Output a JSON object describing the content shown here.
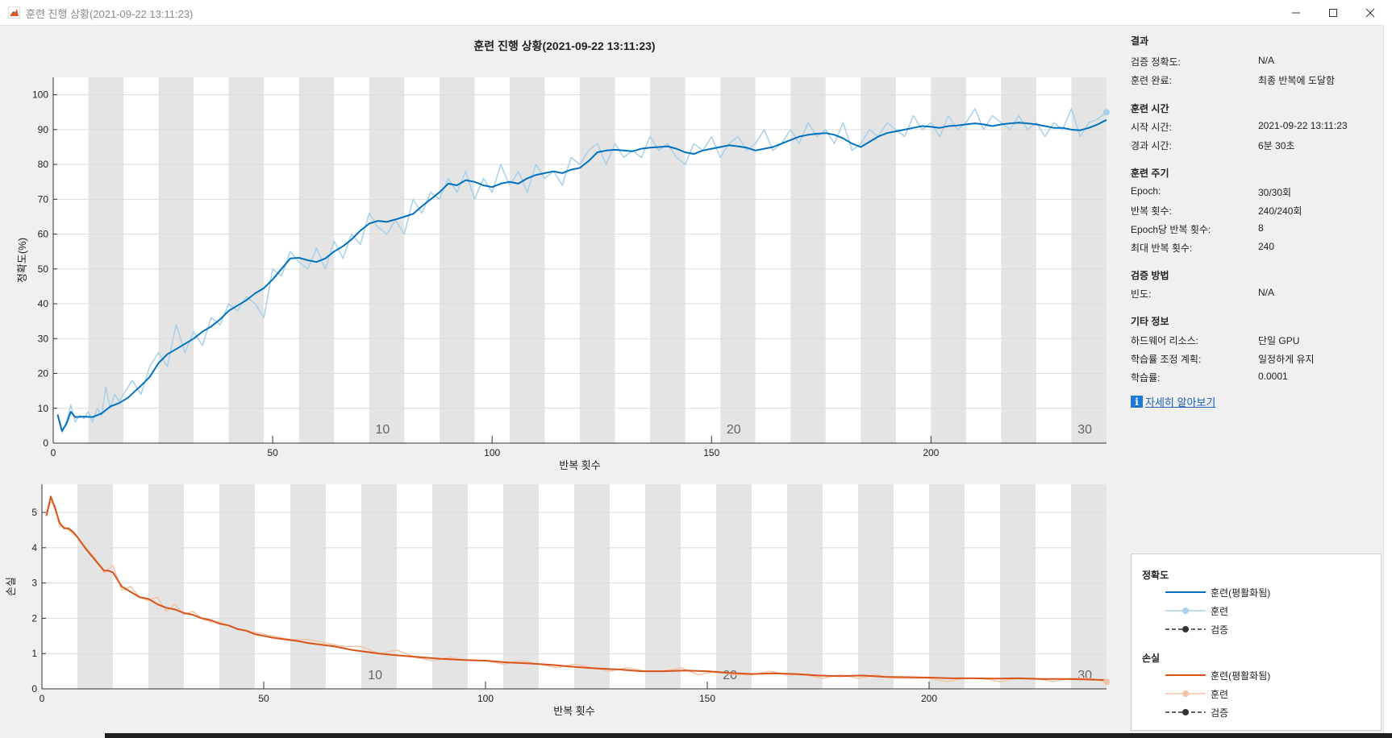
{
  "window": {
    "title": "훈련 진행 상황(2021-09-22 13:11:23)",
    "minimize_glyph": "—",
    "maximize_glyph": "☐",
    "close_glyph": "✕"
  },
  "chart_title": "훈련 진행 상황(2021-09-22 13:11:23)",
  "info": {
    "results_title": "결과",
    "results": [
      {
        "label": "검증 정확도:",
        "value": "N/A"
      },
      {
        "label": "훈련 완료:",
        "value": "최종 반복에 도달함"
      }
    ],
    "time_title": "훈련 시간",
    "time": [
      {
        "label": "시작 시간:",
        "value": "2021-09-22 13:11:23"
      },
      {
        "label": "경과 시간:",
        "value": "6분 30초"
      }
    ],
    "cycle_title": "훈련 주기",
    "cycle": [
      {
        "label": "Epoch:",
        "value": "30/30회"
      },
      {
        "label": "반복 횟수:",
        "value": "240/240회"
      },
      {
        "label": "Epoch당 반복 횟수:",
        "value": "8"
      },
      {
        "label": "최대 반복 횟수:",
        "value": "240"
      }
    ],
    "validation_title": "검증 방법",
    "validation": [
      {
        "label": "빈도:",
        "value": "N/A"
      }
    ],
    "other_title": "기타 정보",
    "other": [
      {
        "label": "하드웨어 리소스:",
        "value": "단일 GPU"
      },
      {
        "label": "학습률 조정 계획:",
        "value": "일정하게 유지"
      },
      {
        "label": "학습률:",
        "value": "0.0001"
      }
    ],
    "learn_more": "자세히 알아보기",
    "info_glyph": "i"
  },
  "legend": {
    "accuracy_title": "정확도",
    "loss_title": "손실",
    "smoothed": "훈련(평활화됨)",
    "training": "훈련",
    "validation": "검증"
  },
  "colors": {
    "acc_smooth": "#0072bd",
    "acc_raw": "#a8d0ea",
    "loss_smooth": "#d95319",
    "loss_raw": "#f4c3a8",
    "epoch_band": "#e4e4e4",
    "grid": "#dcdcdc",
    "validation": "#333333"
  },
  "chart_data": [
    {
      "type": "line",
      "ylabel": "정확도(%)",
      "xlabel": "반복 횟수",
      "xlim": [
        0,
        240
      ],
      "ylim": [
        0,
        105
      ],
      "xticks": [
        0,
        50,
        100,
        150,
        200
      ],
      "yticks": [
        0,
        10,
        20,
        30,
        40,
        50,
        60,
        70,
        80,
        90,
        100
      ],
      "epoch_labels": [
        {
          "x": 80,
          "label": "10"
        },
        {
          "x": 160,
          "label": "20"
        },
        {
          "x": 240,
          "label": "30"
        }
      ],
      "grid": true,
      "series": [
        {
          "name": "훈련(평활화됨)",
          "x": [
            1,
            2,
            3,
            4,
            5,
            7,
            9,
            11,
            13,
            15,
            17,
            20,
            22,
            24,
            26,
            28,
            30,
            32,
            34,
            36,
            38,
            40,
            42,
            44,
            46,
            48,
            50,
            52,
            54,
            56,
            58,
            60,
            62,
            64,
            66,
            68,
            70,
            72,
            74,
            76,
            78,
            80,
            82,
            84,
            86,
            88,
            90,
            92,
            94,
            96,
            98,
            100,
            102,
            104,
            106,
            108,
            110,
            112,
            114,
            116,
            118,
            120,
            122,
            124,
            126,
            128,
            130,
            132,
            134,
            136,
            138,
            140,
            142,
            144,
            146,
            148,
            150,
            152,
            154,
            156,
            158,
            160,
            162,
            164,
            166,
            168,
            170,
            172,
            174,
            176,
            178,
            180,
            182,
            184,
            186,
            188,
            190,
            192,
            194,
            196,
            198,
            200,
            202,
            204,
            206,
            208,
            210,
            212,
            214,
            216,
            218,
            220,
            222,
            224,
            226,
            228,
            230,
            232,
            234,
            236,
            238,
            240
          ],
          "values": [
            8.2,
            3.5,
            5.5,
            9.0,
            7.5,
            7.6,
            7.5,
            8.5,
            10.5,
            11.5,
            13.0,
            16.5,
            19.0,
            23.0,
            25.5,
            27.0,
            28.5,
            30.0,
            32.0,
            33.5,
            35.5,
            38.0,
            39.5,
            41.0,
            43.0,
            44.5,
            47.0,
            50.0,
            53.0,
            53.2,
            52.5,
            52.0,
            53.0,
            55.0,
            56.5,
            58.5,
            61.0,
            63.0,
            63.8,
            63.5,
            64.2,
            65.0,
            65.8,
            68.0,
            70.0,
            72.0,
            74.5,
            74.0,
            75.5,
            75.0,
            74.0,
            73.5,
            74.5,
            75.0,
            74.5,
            76.0,
            77.0,
            77.5,
            78.0,
            77.5,
            78.5,
            79.0,
            81.0,
            83.5,
            84.0,
            84.2,
            84.0,
            83.8,
            84.5,
            84.8,
            85.0,
            85.2,
            84.5,
            83.5,
            83.0,
            84.0,
            84.5,
            85.0,
            85.5,
            85.2,
            84.8,
            84.0,
            84.5,
            85.0,
            86.0,
            87.0,
            88.0,
            88.5,
            88.8,
            89.0,
            88.5,
            87.5,
            86.0,
            85.0,
            86.5,
            88.0,
            89.0,
            89.5,
            90.0,
            90.5,
            91.0,
            90.8,
            90.5,
            91.0,
            91.2,
            91.5,
            91.8,
            91.5,
            91.0,
            91.5,
            91.8,
            92.0,
            91.8,
            91.5,
            91.0,
            90.5,
            90.5,
            90.0,
            89.8,
            90.5,
            91.5,
            92.8
          ]
        },
        {
          "name": "훈련",
          "x": [
            1,
            2,
            3,
            4,
            5,
            6,
            7,
            8,
            9,
            10,
            11,
            12,
            13,
            14,
            15,
            16,
            18,
            20,
            22,
            24,
            26,
            28,
            30,
            32,
            34,
            36,
            38,
            40,
            42,
            44,
            46,
            48,
            50,
            52,
            54,
            56,
            58,
            60,
            62,
            64,
            66,
            68,
            70,
            72,
            74,
            76,
            78,
            80,
            82,
            84,
            86,
            88,
            90,
            92,
            94,
            96,
            98,
            100,
            102,
            104,
            106,
            108,
            110,
            112,
            114,
            116,
            118,
            120,
            122,
            124,
            126,
            128,
            130,
            132,
            134,
            136,
            138,
            140,
            142,
            144,
            146,
            148,
            150,
            152,
            154,
            156,
            158,
            160,
            162,
            164,
            166,
            168,
            170,
            172,
            174,
            176,
            178,
            180,
            182,
            184,
            186,
            188,
            190,
            192,
            194,
            196,
            198,
            200,
            202,
            204,
            206,
            208,
            210,
            212,
            214,
            216,
            218,
            220,
            222,
            224,
            226,
            228,
            230,
            232,
            234,
            236,
            238,
            240
          ],
          "values": [
            8,
            3,
            6,
            11,
            6,
            8,
            7,
            9,
            6,
            10,
            8,
            16,
            10,
            14,
            12,
            14,
            18,
            14,
            22,
            26,
            22,
            34,
            26,
            32,
            28,
            36,
            34,
            40,
            38,
            42,
            40,
            36,
            50,
            48,
            55,
            52,
            50,
            56,
            50,
            58,
            53,
            60,
            57,
            66,
            62,
            60,
            64,
            60,
            70,
            66,
            72,
            70,
            76,
            72,
            78,
            70,
            76,
            72,
            80,
            74,
            78,
            72,
            80,
            76,
            78,
            74,
            82,
            80,
            84,
            86,
            80,
            86,
            82,
            84,
            82,
            88,
            84,
            86,
            82,
            80,
            86,
            84,
            88,
            82,
            86,
            88,
            84,
            86,
            90,
            84,
            86,
            90,
            86,
            92,
            88,
            90,
            86,
            92,
            84,
            86,
            90,
            88,
            92,
            90,
            88,
            94,
            90,
            92,
            88,
            94,
            90,
            92,
            96,
            90,
            94,
            92,
            90,
            94,
            90,
            92,
            88,
            92,
            90,
            96,
            88,
            92,
            93,
            95
          ]
        }
      ]
    },
    {
      "type": "line",
      "ylabel": "손실",
      "xlabel": "반복 횟수",
      "xlim": [
        0,
        240
      ],
      "ylim": [
        0,
        5.8
      ],
      "xticks": [
        0,
        50,
        100,
        150,
        200
      ],
      "yticks": [
        0,
        1,
        2,
        3,
        4,
        5
      ],
      "epoch_labels": [
        {
          "x": 80,
          "label": "10"
        },
        {
          "x": 160,
          "label": "20"
        },
        {
          "x": 240,
          "label": "30"
        }
      ],
      "grid": true,
      "series": [
        {
          "name": "훈련(평활화됨)",
          "x": [
            1,
            2,
            3,
            4,
            5,
            6,
            7,
            8,
            10,
            12,
            14,
            15,
            16,
            18,
            20,
            22,
            24,
            26,
            28,
            30,
            32,
            34,
            36,
            38,
            40,
            42,
            44,
            46,
            48,
            50,
            52,
            55,
            58,
            60,
            63,
            66,
            70,
            73,
            76,
            80,
            85,
            90,
            95,
            100,
            105,
            110,
            115,
            120,
            125,
            130,
            135,
            140,
            145,
            150,
            155,
            160,
            165,
            170,
            175,
            180,
            185,
            190,
            195,
            200,
            205,
            210,
            215,
            220,
            225,
            230,
            235,
            240
          ],
          "values": [
            4.9,
            5.45,
            5.1,
            4.7,
            4.55,
            4.55,
            4.45,
            4.3,
            3.95,
            3.65,
            3.35,
            3.35,
            3.3,
            2.9,
            2.75,
            2.6,
            2.55,
            2.4,
            2.3,
            2.25,
            2.15,
            2.1,
            2.0,
            1.95,
            1.85,
            1.8,
            1.7,
            1.65,
            1.55,
            1.5,
            1.45,
            1.4,
            1.35,
            1.3,
            1.25,
            1.2,
            1.1,
            1.05,
            1.0,
            0.95,
            0.9,
            0.85,
            0.82,
            0.8,
            0.75,
            0.72,
            0.68,
            0.62,
            0.58,
            0.55,
            0.5,
            0.5,
            0.52,
            0.5,
            0.45,
            0.42,
            0.44,
            0.42,
            0.38,
            0.36,
            0.38,
            0.34,
            0.33,
            0.32,
            0.3,
            0.3,
            0.29,
            0.3,
            0.28,
            0.28,
            0.27,
            0.25
          ]
        },
        {
          "name": "훈련",
          "x": [
            1,
            2,
            3,
            4,
            5,
            6,
            8,
            10,
            12,
            14,
            16,
            18,
            20,
            22,
            24,
            26,
            28,
            30,
            32,
            34,
            36,
            38,
            40,
            44,
            48,
            52,
            56,
            60,
            64,
            68,
            72,
            76,
            80,
            84,
            88,
            92,
            96,
            100,
            104,
            108,
            112,
            116,
            120,
            124,
            128,
            132,
            136,
            140,
            144,
            148,
            152,
            156,
            160,
            164,
            168,
            172,
            176,
            180,
            184,
            188,
            192,
            196,
            200,
            204,
            208,
            212,
            216,
            220,
            224,
            228,
            232,
            236,
            240
          ],
          "values": [
            5.0,
            5.3,
            5.2,
            4.6,
            4.6,
            4.5,
            4.3,
            4.0,
            3.7,
            3.3,
            3.5,
            2.8,
            2.9,
            2.6,
            2.5,
            2.6,
            2.2,
            2.4,
            2.1,
            2.2,
            2.0,
            1.9,
            1.9,
            1.7,
            1.6,
            1.5,
            1.4,
            1.4,
            1.3,
            1.2,
            1.2,
            1.0,
            1.1,
            0.9,
            0.8,
            0.9,
            0.8,
            0.8,
            0.7,
            0.8,
            0.7,
            0.6,
            0.7,
            0.6,
            0.5,
            0.6,
            0.5,
            0.5,
            0.6,
            0.4,
            0.5,
            0.4,
            0.4,
            0.5,
            0.4,
            0.4,
            0.3,
            0.4,
            0.3,
            0.4,
            0.3,
            0.3,
            0.3,
            0.2,
            0.3,
            0.3,
            0.2,
            0.3,
            0.3,
            0.2,
            0.3,
            0.3,
            0.2
          ]
        }
      ]
    }
  ]
}
